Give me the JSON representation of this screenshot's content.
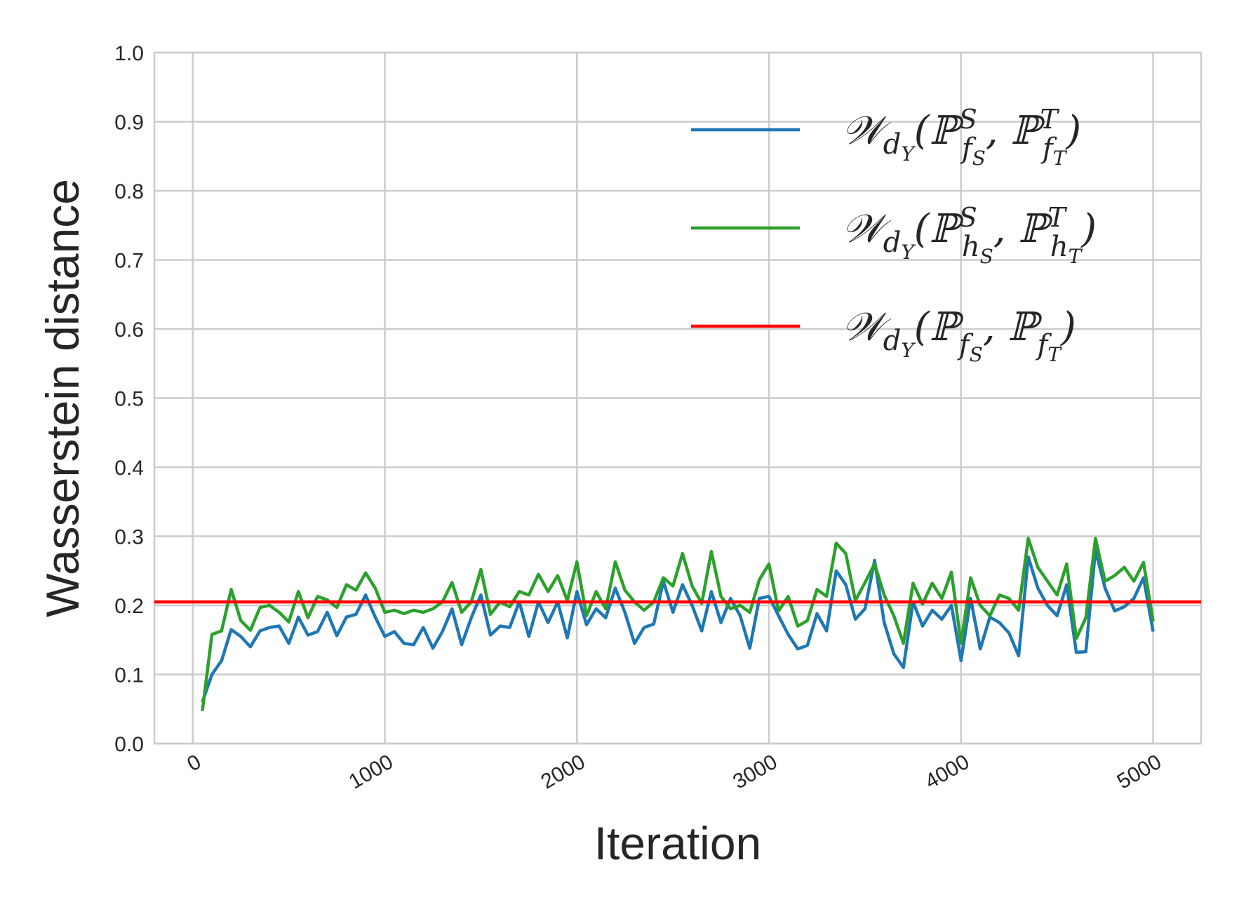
{
  "chart_data": {
    "type": "line",
    "title": "",
    "xlabel": "Iteration",
    "ylabel": "Wasserstein distance",
    "xlim": [
      -200,
      5250
    ],
    "ylim": [
      0.0,
      1.0
    ],
    "xticks": [
      0,
      1000,
      2000,
      3000,
      4000,
      5000
    ],
    "xtick_labels": [
      "0",
      "1000",
      "2000",
      "3000",
      "4000",
      "5000"
    ],
    "yticks": [
      0.0,
      0.1,
      0.2,
      0.3,
      0.4,
      0.5,
      0.6,
      0.7,
      0.8,
      0.9,
      1.0
    ],
    "ytick_labels": [
      "0.0",
      "0.1",
      "0.2",
      "0.3",
      "0.4",
      "0.5",
      "0.6",
      "0.7",
      "0.8",
      "0.9",
      "1.0"
    ],
    "grid": true,
    "legend_position": "top-right",
    "x": [
      50,
      100,
      150,
      200,
      250,
      300,
      350,
      400,
      450,
      500,
      550,
      600,
      650,
      700,
      750,
      800,
      850,
      900,
      950,
      1000,
      1050,
      1100,
      1150,
      1200,
      1250,
      1300,
      1350,
      1400,
      1450,
      1500,
      1550,
      1600,
      1650,
      1700,
      1750,
      1800,
      1850,
      1900,
      1950,
      2000,
      2050,
      2100,
      2150,
      2200,
      2250,
      2300,
      2350,
      2400,
      2450,
      2500,
      2550,
      2600,
      2650,
      2700,
      2750,
      2800,
      2850,
      2900,
      2950,
      3000,
      3050,
      3100,
      3150,
      3200,
      3250,
      3300,
      3350,
      3400,
      3450,
      3500,
      3550,
      3600,
      3650,
      3700,
      3750,
      3800,
      3850,
      3900,
      3950,
      4000,
      4050,
      4100,
      4150,
      4200,
      4250,
      4300,
      4350,
      4400,
      4450,
      4500,
      4550,
      4600,
      4650,
      4700,
      4750,
      4800,
      4850,
      4900,
      4950,
      5000
    ],
    "series": [
      {
        "name": "𝒲dY(ℙSfS, ℙTfT)",
        "label_main": "𝒲",
        "label_sub": "d",
        "label_subsub": "Y",
        "label_p1": "ℙ",
        "label_p1_sup": "S",
        "label_p1_sub": "f",
        "label_p1_subsub": "S",
        "label_p2": "ℙ",
        "label_p2_sup": "T",
        "label_p2_sub": "f",
        "label_p2_subsub": "T",
        "color": "#1f77b4",
        "values": [
          0.06,
          0.1,
          0.12,
          0.165,
          0.155,
          0.14,
          0.163,
          0.168,
          0.17,
          0.145,
          0.183,
          0.157,
          0.162,
          0.19,
          0.156,
          0.183,
          0.187,
          0.215,
          0.183,
          0.155,
          0.162,
          0.145,
          0.143,
          0.168,
          0.138,
          0.162,
          0.195,
          0.143,
          0.182,
          0.215,
          0.157,
          0.17,
          0.168,
          0.205,
          0.155,
          0.205,
          0.175,
          0.205,
          0.153,
          0.22,
          0.172,
          0.195,
          0.182,
          0.225,
          0.19,
          0.145,
          0.168,
          0.173,
          0.235,
          0.19,
          0.23,
          0.2,
          0.163,
          0.22,
          0.175,
          0.21,
          0.185,
          0.138,
          0.21,
          0.213,
          0.185,
          0.158,
          0.137,
          0.142,
          0.188,
          0.163,
          0.25,
          0.23,
          0.18,
          0.195,
          0.265,
          0.175,
          0.13,
          0.11,
          0.205,
          0.17,
          0.193,
          0.18,
          0.2,
          0.12,
          0.21,
          0.137,
          0.183,
          0.175,
          0.16,
          0.127,
          0.27,
          0.225,
          0.2,
          0.185,
          0.23,
          0.132,
          0.133,
          0.28,
          0.225,
          0.192,
          0.198,
          0.21,
          0.24,
          0.162
        ]
      },
      {
        "name": "𝒲dY(ℙShS, ℙThT)",
        "label_main": "𝒲",
        "label_sub": "d",
        "label_subsub": "Y",
        "label_p1": "ℙ",
        "label_p1_sup": "S",
        "label_p1_sub": "h",
        "label_p1_subsub": "S",
        "label_p2": "ℙ",
        "label_p2_sup": "T",
        "label_p2_sub": "h",
        "label_p2_subsub": "T",
        "color": "#2ca02c",
        "values": [
          0.047,
          0.158,
          0.163,
          0.223,
          0.178,
          0.164,
          0.197,
          0.2,
          0.19,
          0.176,
          0.22,
          0.182,
          0.213,
          0.208,
          0.197,
          0.23,
          0.222,
          0.247,
          0.225,
          0.19,
          0.193,
          0.188,
          0.193,
          0.19,
          0.195,
          0.205,
          0.233,
          0.19,
          0.205,
          0.252,
          0.187,
          0.205,
          0.198,
          0.22,
          0.215,
          0.245,
          0.22,
          0.243,
          0.207,
          0.263,
          0.185,
          0.22,
          0.195,
          0.263,
          0.222,
          0.205,
          0.193,
          0.205,
          0.24,
          0.228,
          0.275,
          0.228,
          0.203,
          0.278,
          0.213,
          0.195,
          0.2,
          0.19,
          0.237,
          0.26,
          0.192,
          0.213,
          0.17,
          0.178,
          0.223,
          0.213,
          0.29,
          0.275,
          0.207,
          0.233,
          0.26,
          0.215,
          0.185,
          0.145,
          0.232,
          0.202,
          0.232,
          0.21,
          0.248,
          0.145,
          0.24,
          0.2,
          0.185,
          0.215,
          0.21,
          0.193,
          0.297,
          0.255,
          0.235,
          0.215,
          0.26,
          0.152,
          0.182,
          0.297,
          0.235,
          0.243,
          0.255,
          0.235,
          0.262,
          0.177
        ]
      },
      {
        "name": "𝒲dY(ℙfS, ℙfT)",
        "label_main": "𝒲",
        "label_sub": "d",
        "label_subsub": "Y",
        "label_p1": "ℙ",
        "label_p1_sup": "",
        "label_p1_sub": "f",
        "label_p1_subsub": "S",
        "label_p2": "ℙ",
        "label_p2_sup": "",
        "label_p2_sub": "f",
        "label_p2_subsub": "T",
        "color": "#ff0000",
        "type": "hline",
        "value": 0.205
      }
    ]
  }
}
